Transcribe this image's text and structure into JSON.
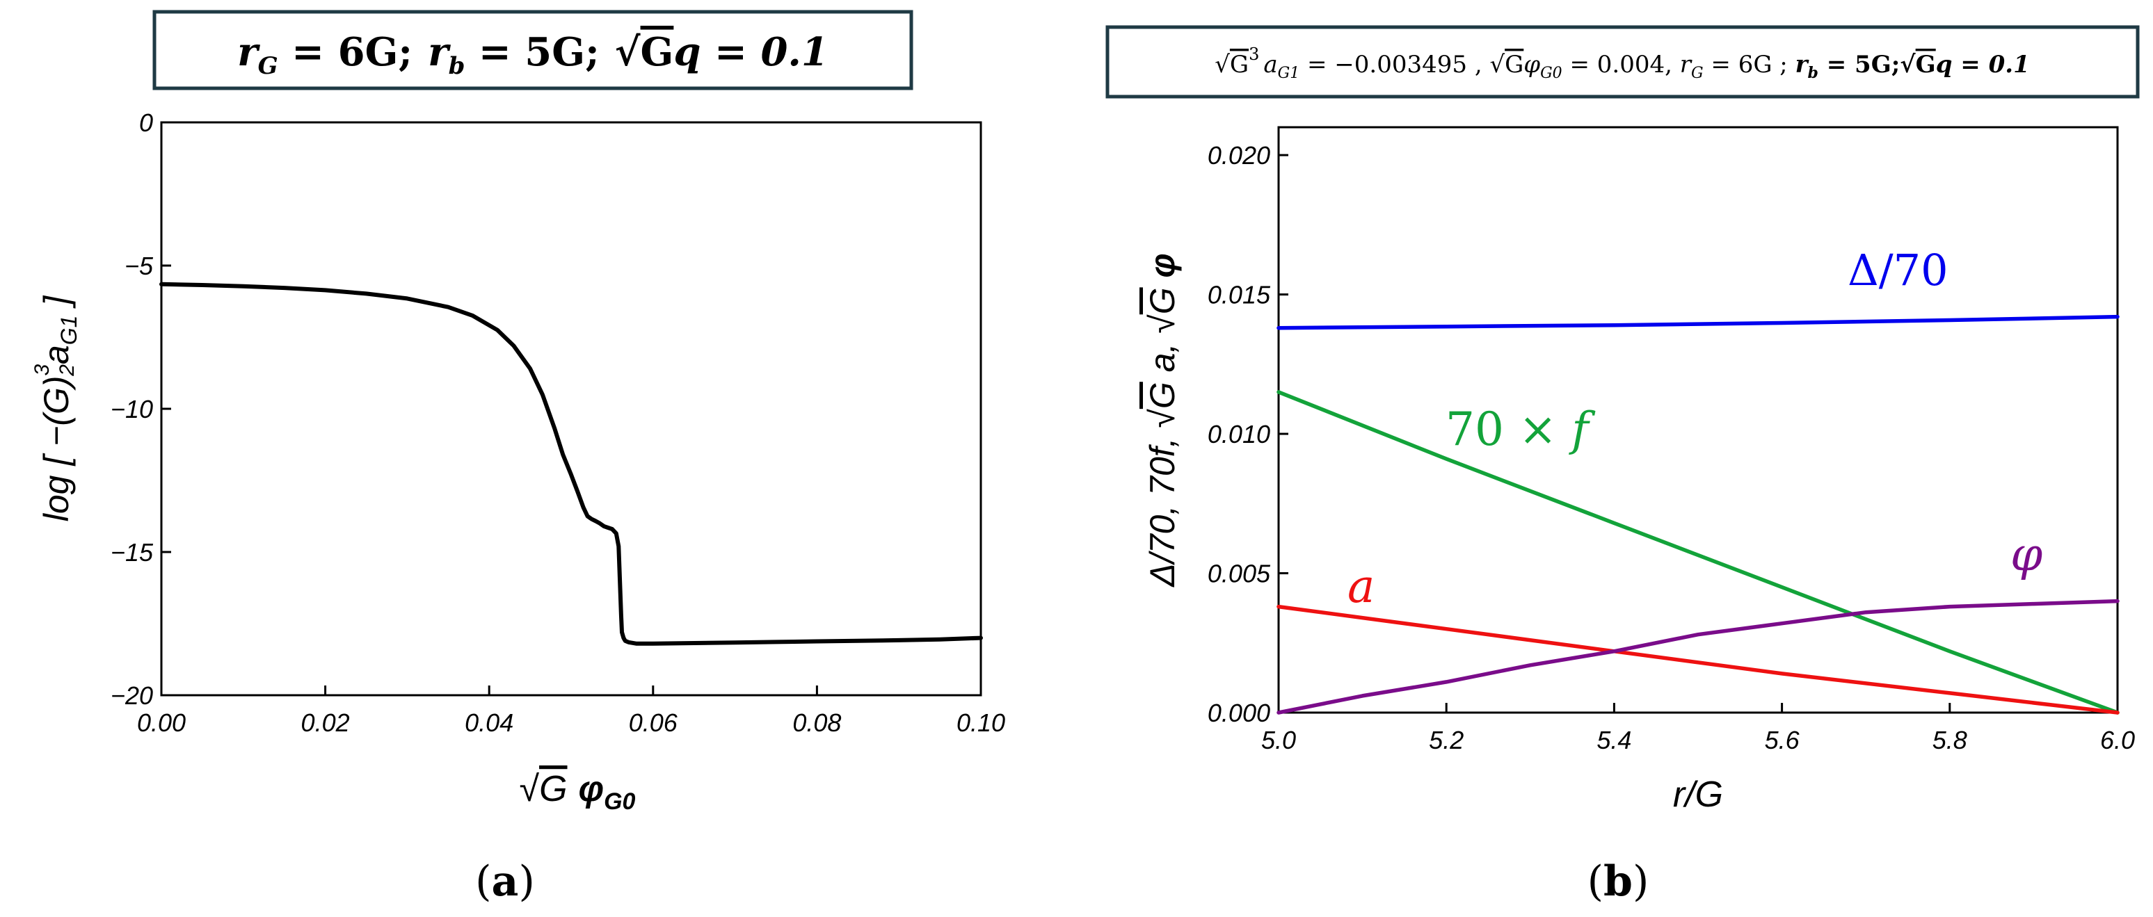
{
  "colors": {
    "box_border": "#1f3a44",
    "axis": "#000000",
    "curve_a": "#000000",
    "delta": "#0000ee",
    "f": "#13a33a",
    "a": "#ee1111",
    "phi": "#7a0c8a"
  },
  "panel_a": {
    "caption": "(a)",
    "title_box": {
      "rG": "r",
      "rG_sub": "G",
      "rG_val": " = 6G;",
      "rb": "r",
      "rb_sub": "b",
      "rb_val": " = 5G;",
      "q_rad": "G",
      "q_val": "q = 0.1"
    },
    "xlabel": {
      "root": "G",
      "sym": "φ",
      "sub": "G0"
    },
    "ylabel": {
      "pre": "log [ −(G)",
      "sup": "3",
      "sup2": "2",
      "mid": "a",
      "sub": "G1",
      "post": " ]"
    }
  },
  "panel_b": {
    "caption": "(b)",
    "title_box": {
      "t1_root": "G",
      "t1_sup": "3",
      "t1_a": "a",
      "t1_a_sub": "G1",
      "t1_eq": " = −0.003495 , ",
      "t2_root": "G",
      "t2_phi": "φ",
      "t2_phi_sub": "G0",
      "t2_eq": " = 0.004, ",
      "t3_r": "r",
      "t3_r_sub": "G",
      "t3_eq": " = 6G ; ",
      "t4": "r",
      "t4_sub": "b",
      "t4_eq": " = 5G;",
      "t5_root": "G",
      "t5_eq": "q = 0.1"
    },
    "xlabel": "r/G",
    "ylabel": {
      "p1": "Δ/70, 70f, ",
      "root1": "G",
      "p2": " a, ",
      "root2": "G",
      "p3": " φ"
    },
    "labels": {
      "delta": "Δ/70",
      "f": "70 × f",
      "a": "a",
      "phi": "φ"
    }
  },
  "chart_data": [
    {
      "type": "line",
      "id": "a",
      "title": "r_G = 6G; r_b = 5G; √G q = 0.1",
      "xlabel": "√G φ_G0",
      "ylabel": "log[ −(G)^(3/2) a_G1 ]",
      "xlim": [
        0,
        0.1
      ],
      "ylim": [
        -20,
        0
      ],
      "xticks": [
        0,
        0.02,
        0.04,
        0.06,
        0.08,
        0.1
      ],
      "xtick_labels": [
        "0.00",
        "0.02",
        "0.04",
        "0.06",
        "0.08",
        "0.10"
      ],
      "yticks": [
        0,
        -5,
        -10,
        -15,
        -20
      ],
      "ytick_labels": [
        "0",
        "−5",
        "−10",
        "−15",
        "−20"
      ],
      "grid": false,
      "series": [
        {
          "name": "log[-(G)^(3/2) a_G1]",
          "x": [
            0,
            0.005,
            0.01,
            0.015,
            0.02,
            0.025,
            0.03,
            0.035,
            0.038,
            0.041,
            0.043,
            0.045,
            0.0465,
            0.048,
            0.049,
            0.05,
            0.0508,
            0.0515,
            0.052,
            0.0525,
            0.053,
            0.0535,
            0.054,
            0.0545,
            0.055,
            0.0555,
            0.0558,
            0.0561,
            0.0562,
            0.0564,
            0.0566,
            0.057,
            0.058,
            0.06,
            0.065,
            0.07,
            0.075,
            0.08,
            0.085,
            0.09,
            0.095,
            0.1
          ],
          "values": [
            -5.65,
            -5.68,
            -5.72,
            -5.78,
            -5.86,
            -5.98,
            -6.15,
            -6.45,
            -6.75,
            -7.25,
            -7.8,
            -8.6,
            -9.5,
            -10.7,
            -11.6,
            -12.3,
            -12.9,
            -13.45,
            -13.75,
            -13.85,
            -13.92,
            -14.0,
            -14.1,
            -14.15,
            -14.2,
            -14.35,
            -14.8,
            -17.2,
            -17.8,
            -18.0,
            -18.1,
            -18.15,
            -18.2,
            -18.2,
            -18.18,
            -18.16,
            -18.14,
            -18.12,
            -18.1,
            -18.08,
            -18.05,
            -18.0
          ]
        }
      ]
    },
    {
      "type": "line",
      "id": "b",
      "title": "√G³ a_G1 = −0.003495 , √G φ_G0 = 0.004, r_G = 6G ; r_b = 5G; √G q = 0.1",
      "xlabel": "r/G",
      "ylabel": "Δ/70, 70f, √G a, √G φ",
      "xlim": [
        5,
        6
      ],
      "ylim": [
        0,
        0.021
      ],
      "xticks": [
        5,
        5.2,
        5.4,
        5.6,
        5.8,
        6
      ],
      "xtick_labels": [
        "5.0",
        "5.2",
        "5.4",
        "5.6",
        "5.8",
        "6.0"
      ],
      "yticks": [
        0,
        0.005,
        0.01,
        0.015,
        0.02
      ],
      "ytick_labels": [
        "0.000",
        "0.005",
        "0.010",
        "0.015",
        "0.020"
      ],
      "grid": false,
      "series": [
        {
          "name": "Δ/70",
          "color": "#0000ee",
          "x": [
            5,
            5.2,
            5.4,
            5.6,
            5.8,
            6
          ],
          "values": [
            0.0138,
            0.01385,
            0.0139,
            0.01398,
            0.01408,
            0.0142
          ]
        },
        {
          "name": "70 × f",
          "color": "#13a33a",
          "x": [
            5,
            5.2,
            5.4,
            5.6,
            5.8,
            6
          ],
          "values": [
            0.0115,
            0.0091,
            0.0068,
            0.0045,
            0.0022,
            0.0
          ]
        },
        {
          "name": "a",
          "color": "#ee1111",
          "x": [
            5,
            5.2,
            5.4,
            5.6,
            5.8,
            6
          ],
          "values": [
            0.0038,
            0.003,
            0.0022,
            0.0014,
            0.0007,
            0.0
          ]
        },
        {
          "name": "φ",
          "color": "#7a0c8a",
          "x": [
            5,
            5.1,
            5.2,
            5.3,
            5.4,
            5.5,
            5.6,
            5.7,
            5.8,
            5.9,
            6
          ],
          "values": [
            0.0,
            0.0006,
            0.0011,
            0.0017,
            0.0022,
            0.0028,
            0.0032,
            0.0036,
            0.0038,
            0.0039,
            0.004
          ]
        }
      ]
    }
  ]
}
